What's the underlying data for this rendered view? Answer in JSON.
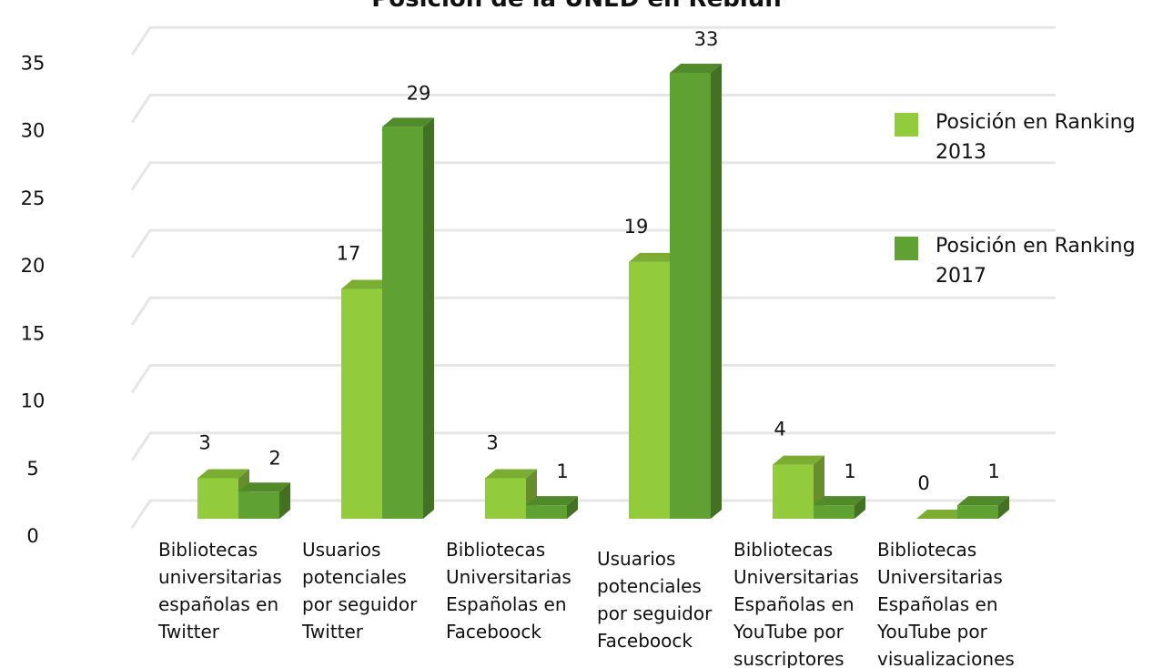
{
  "chart_data": {
    "type": "bar3d",
    "title": "Posición de la UNED en Rebiun",
    "categories": [
      "Bibliotecas universitarias españolas en Twitter",
      "Usuarios potenciales por seguidor Twitter",
      "Bibliotecas Universitarias Españolas en Faceboock",
      "Usuarios potenciales por seguidor Faceboock",
      "Bibliotecas Universitarias Españolas en YouTube por suscriptores",
      "Bibliotecas Universitarias Españolas en YouTube por visualizaciones"
    ],
    "series": [
      {
        "name": "Posición en Ranking 2013",
        "color": "#92cb3c",
        "values": [
          3,
          17,
          3,
          19,
          4,
          0
        ]
      },
      {
        "name": "Posición en Ranking 2017",
        "color": "#5fa233",
        "values": [
          2,
          29,
          1,
          33,
          1,
          1
        ]
      }
    ],
    "ylim": [
      0,
      35
    ],
    "yticks": [
      0,
      5,
      10,
      15,
      20,
      25,
      30,
      35
    ],
    "grid": true,
    "legend": "right"
  }
}
